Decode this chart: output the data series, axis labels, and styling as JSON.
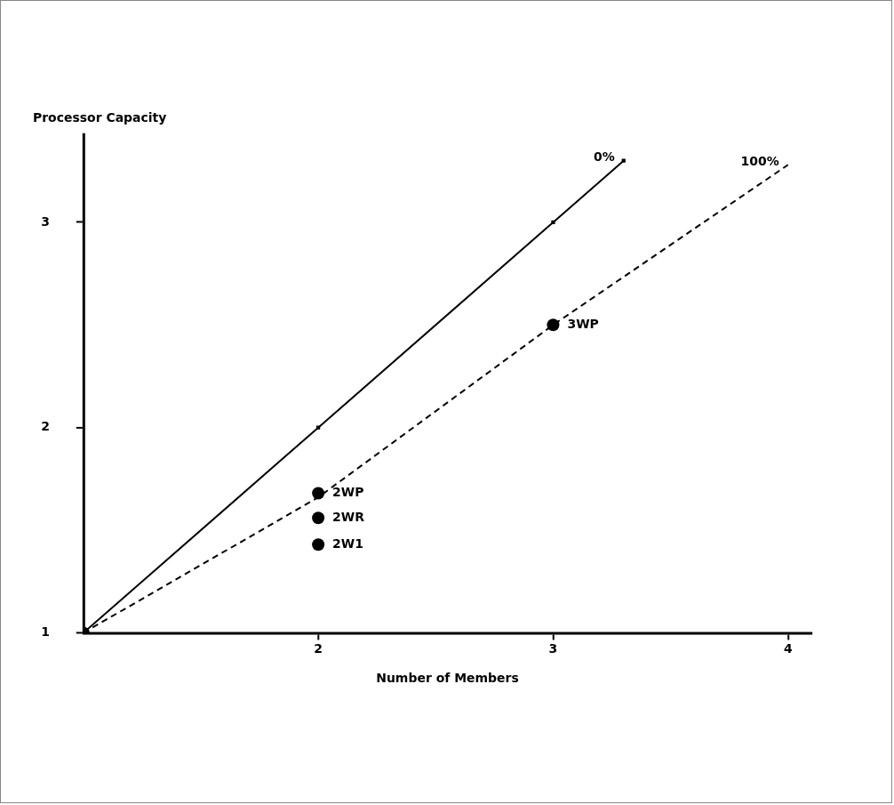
{
  "chart_data": {
    "type": "line",
    "xlabel": "Number of Members",
    "ylabel": "Processor Capacity",
    "xlim": [
      1,
      4.1
    ],
    "ylim": [
      1,
      3.43
    ],
    "xticks": [
      2,
      3,
      4
    ],
    "yticks": [
      1,
      2,
      3
    ],
    "grid": false,
    "legend": false,
    "series": [
      {
        "name": "0%",
        "type": "line",
        "color": "#000000",
        "line_style": "solid",
        "marker": "square",
        "x": [
          1,
          2,
          3,
          3.3
        ],
        "values": [
          1,
          2,
          3,
          3.3
        ]
      },
      {
        "name": "100%",
        "type": "line",
        "color": "#000000",
        "line_style": "dashed",
        "marker": "none",
        "x": [
          1,
          2,
          3,
          4
        ],
        "values": [
          1,
          1.66,
          2.5,
          3.28
        ]
      },
      {
        "type": "scatter",
        "color": "#000000",
        "marker": "circle",
        "x": [
          1
        ],
        "values": [
          1
        ]
      },
      {
        "name": "2WP",
        "type": "scatter",
        "color": "#000000",
        "marker": "circle",
        "x": [
          2
        ],
        "values": [
          1.68
        ]
      },
      {
        "name": "2WR",
        "type": "scatter",
        "color": "#000000",
        "marker": "circle",
        "x": [
          2
        ],
        "values": [
          1.56
        ]
      },
      {
        "name": "2W1",
        "type": "scatter",
        "color": "#000000",
        "marker": "circle",
        "x": [
          2
        ],
        "values": [
          1.43
        ]
      },
      {
        "name": "3WP",
        "type": "scatter",
        "color": "#000000",
        "marker": "circle",
        "x": [
          3
        ],
        "values": [
          2.5
        ]
      }
    ]
  }
}
